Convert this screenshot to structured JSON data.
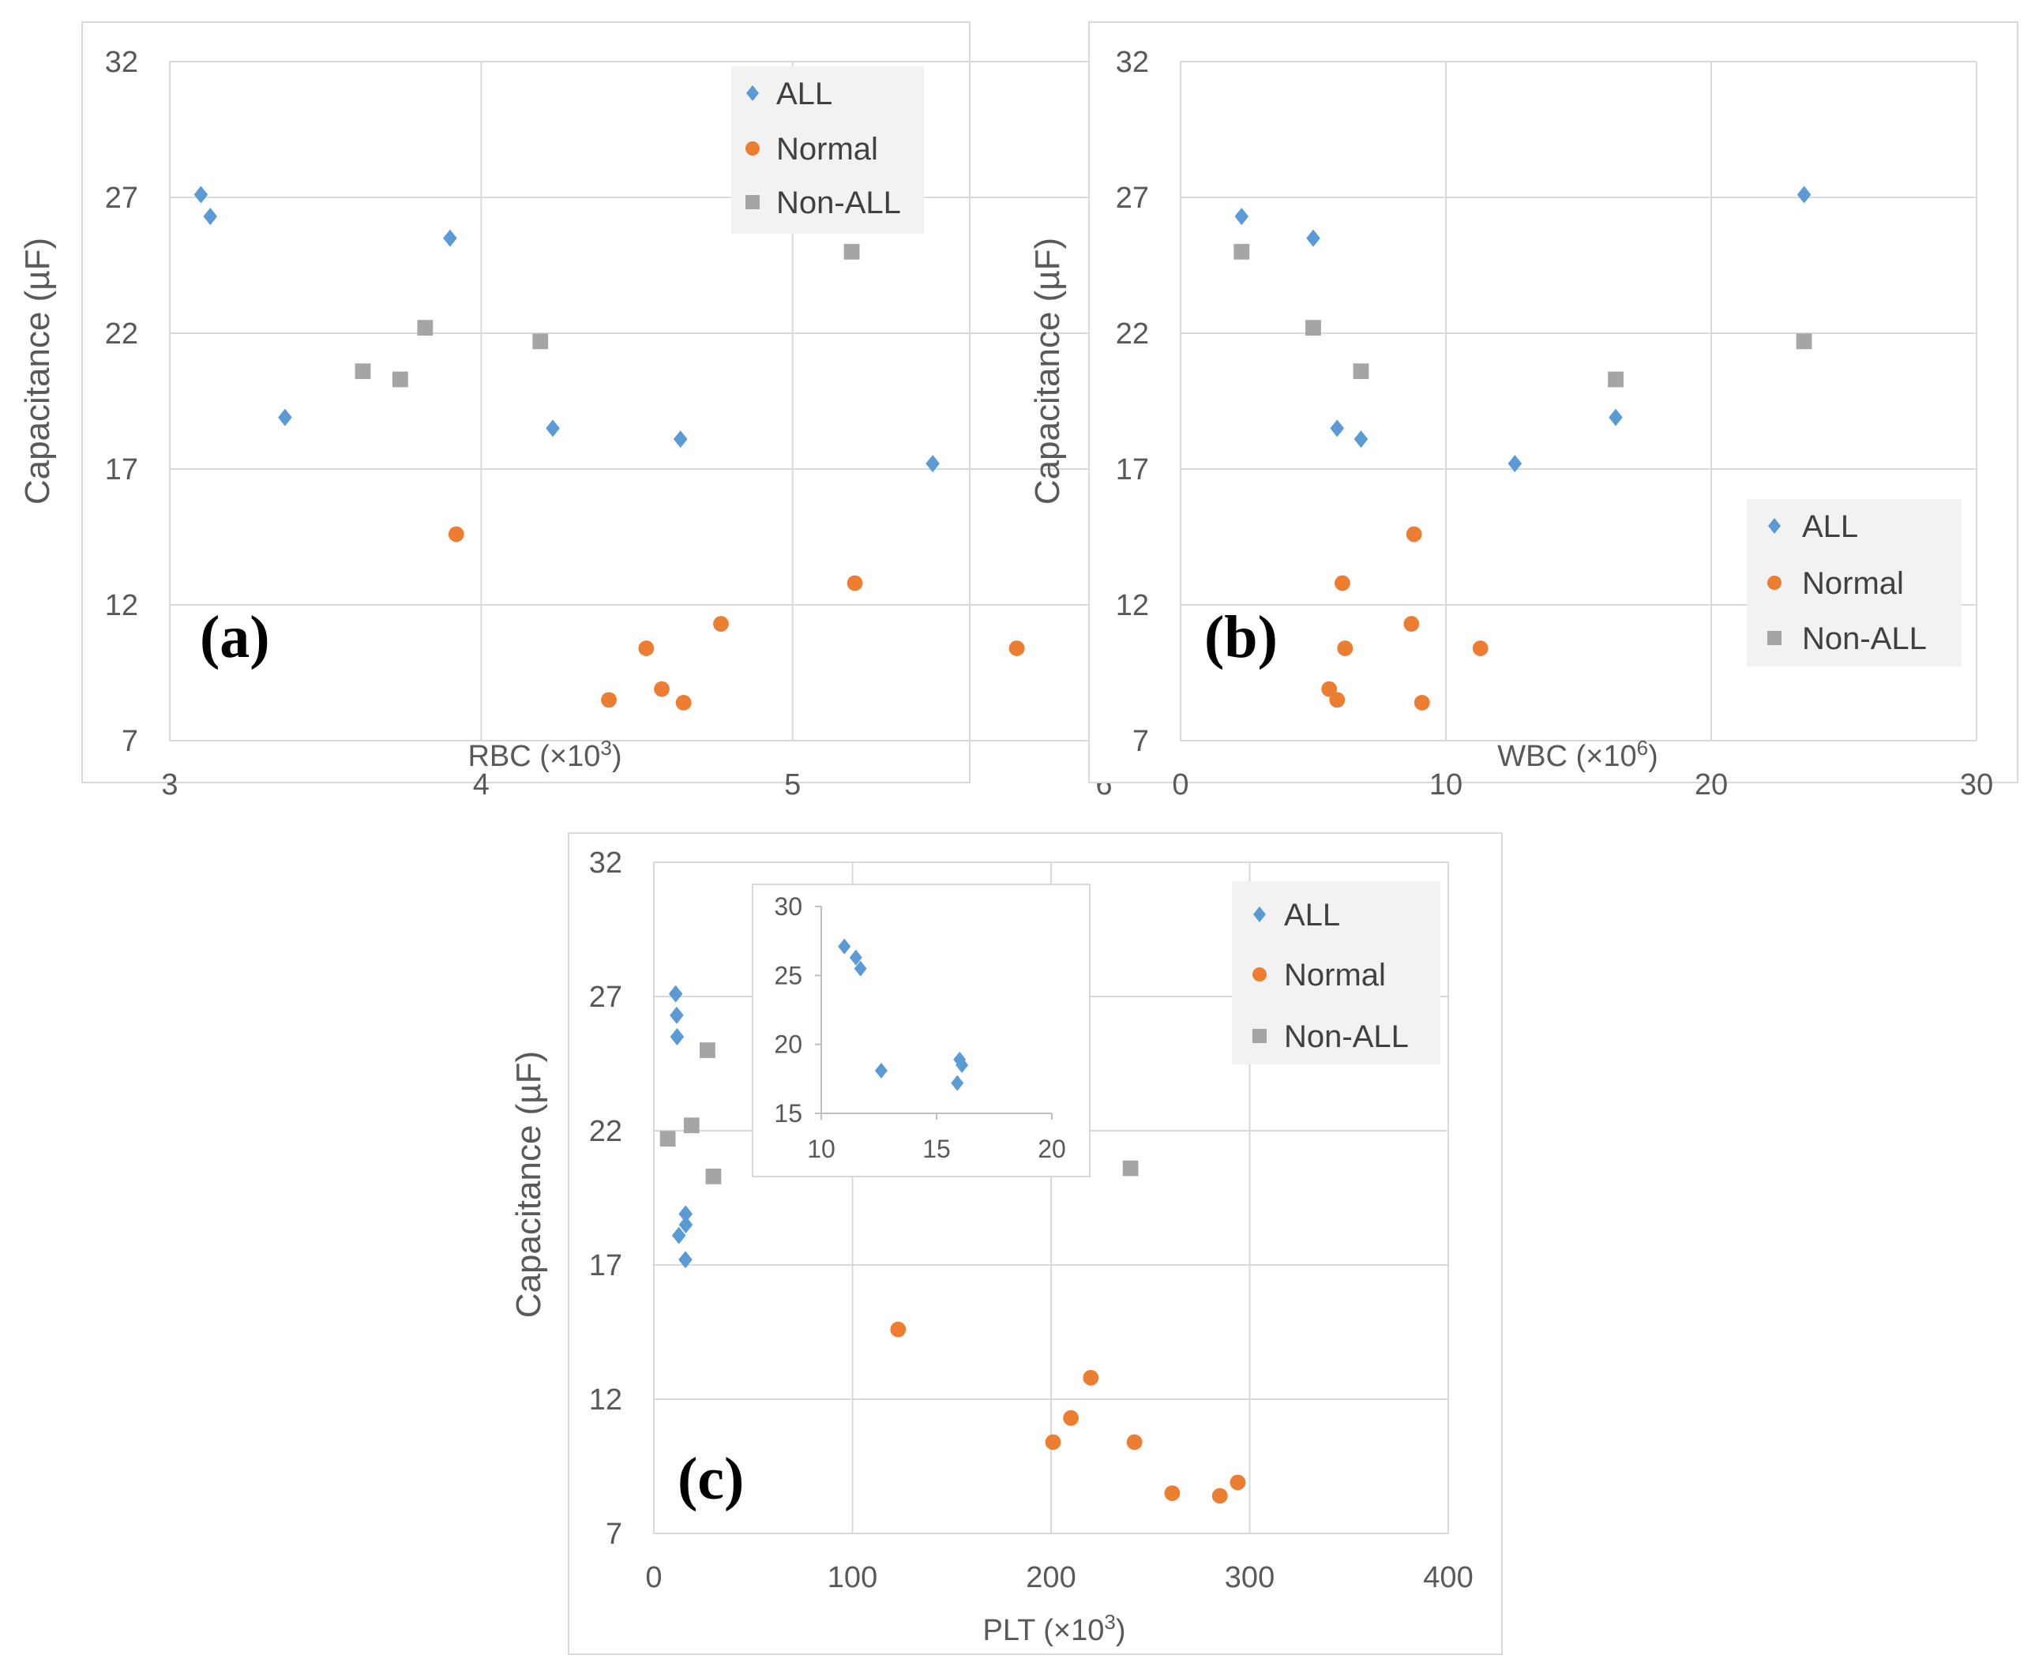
{
  "colors": {
    "all": "#5b9bd5",
    "normal": "#ed7d31",
    "non_all": "#a5a5a5",
    "grid": "#d9d9d9",
    "legend_bg": "#f2f2f2"
  },
  "legend": {
    "all": "ALL",
    "normal": "Normal",
    "non_all": "Non-ALL"
  },
  "chart_data": [
    {
      "type": "scatter",
      "tag": "(a)",
      "xlabel": "RBC (×10",
      "xlabel_sup": "3",
      "xlabel_tail": ")",
      "ylabel": "Capacitance (µF)",
      "xlim": [
        3,
        6
      ],
      "ylim": [
        7,
        32
      ],
      "xticks": [
        "3",
        "4",
        "5",
        "6"
      ],
      "yticks": [
        "7",
        "12",
        "17",
        "22",
        "27",
        "32"
      ],
      "legend_position": "top-right",
      "series": [
        {
          "name": "ALL",
          "key": "all",
          "marker": "diamond",
          "points": [
            [
              3.1,
              27.1
            ],
            [
              3.13,
              26.3
            ],
            [
              3.37,
              18.9
            ],
            [
              3.9,
              25.5
            ],
            [
              4.23,
              18.5
            ],
            [
              4.64,
              18.1
            ],
            [
              5.45,
              17.2
            ]
          ]
        },
        {
          "name": "Normal",
          "key": "normal",
          "marker": "circle",
          "points": [
            [
              3.92,
              14.6
            ],
            [
              4.41,
              8.5
            ],
            [
              4.53,
              10.4
            ],
            [
              4.58,
              8.9
            ],
            [
              4.65,
              8.4
            ],
            [
              4.77,
              11.3
            ],
            [
              5.2,
              12.8
            ],
            [
              5.72,
              10.4
            ]
          ]
        },
        {
          "name": "Non-ALL",
          "key": "non_all",
          "marker": "square",
          "points": [
            [
              3.62,
              20.6
            ],
            [
              3.74,
              20.3
            ],
            [
              3.82,
              22.2
            ],
            [
              4.19,
              21.7
            ],
            [
              5.19,
              25.0
            ]
          ]
        }
      ]
    },
    {
      "type": "scatter",
      "tag": "(b)",
      "xlabel": "WBC (×10",
      "xlabel_sup": "6",
      "xlabel_tail": ")",
      "ylabel": "Capacitance (µF)",
      "xlim": [
        0,
        30
      ],
      "ylim": [
        7,
        32
      ],
      "xticks": [
        "0",
        "10",
        "20",
        "30"
      ],
      "yticks": [
        "7",
        "12",
        "17",
        "22",
        "27",
        "32"
      ],
      "legend_position": "bottom-right",
      "series": [
        {
          "name": "ALL",
          "key": "all",
          "marker": "diamond",
          "points": [
            [
              2.3,
              26.3
            ],
            [
              5.0,
              25.5
            ],
            [
              5.9,
              18.5
            ],
            [
              6.8,
              18.1
            ],
            [
              12.6,
              17.2
            ],
            [
              16.4,
              18.9
            ],
            [
              23.5,
              27.1
            ]
          ]
        },
        {
          "name": "Normal",
          "key": "normal",
          "marker": "circle",
          "points": [
            [
              5.6,
              8.9
            ],
            [
              5.9,
              8.5
            ],
            [
              6.1,
              12.8
            ],
            [
              6.2,
              10.4
            ],
            [
              8.7,
              11.3
            ],
            [
              8.8,
              14.6
            ],
            [
              9.1,
              8.4
            ],
            [
              11.3,
              10.4
            ]
          ]
        },
        {
          "name": "Non-ALL",
          "key": "non_all",
          "marker": "square",
          "points": [
            [
              2.3,
              25.0
            ],
            [
              5.0,
              22.2
            ],
            [
              6.8,
              20.6
            ],
            [
              16.4,
              20.3
            ],
            [
              23.5,
              21.7
            ]
          ]
        }
      ]
    },
    {
      "type": "scatter",
      "tag": "(c)",
      "xlabel": "PLT (×10",
      "xlabel_sup": "3",
      "xlabel_tail": ")",
      "ylabel": "Capacitance (µF)",
      "xlim": [
        0,
        400
      ],
      "ylim": [
        7,
        32
      ],
      "xticks": [
        "0",
        "100",
        "200",
        "300",
        "400"
      ],
      "yticks": [
        "7",
        "12",
        "17",
        "22",
        "27",
        "32"
      ],
      "legend_position": "top-right",
      "series": [
        {
          "name": "ALL",
          "key": "all",
          "marker": "diamond",
          "points": [
            [
              11,
              27.1
            ],
            [
              11.5,
              26.3
            ],
            [
              11.7,
              25.5
            ],
            [
              12.6,
              18.1
            ],
            [
              15.9,
              17.2
            ],
            [
              16,
              18.9
            ],
            [
              16.1,
              18.5
            ]
          ]
        },
        {
          "name": "Normal",
          "key": "normal",
          "marker": "circle",
          "points": [
            [
              123,
              14.6
            ],
            [
              201,
              10.4
            ],
            [
              210,
              11.3
            ],
            [
              220,
              12.8
            ],
            [
              242,
              10.4
            ],
            [
              261,
              8.5
            ],
            [
              285,
              8.4
            ],
            [
              294,
              8.9
            ]
          ]
        },
        {
          "name": "Non-ALL",
          "key": "non_all",
          "marker": "square",
          "points": [
            [
              7,
              21.7
            ],
            [
              19,
              22.2
            ],
            [
              27,
              25.0
            ],
            [
              30,
              20.3
            ],
            [
              240,
              20.6
            ]
          ]
        }
      ],
      "inset": {
        "type": "scatter",
        "xlim": [
          10,
          20
        ],
        "ylim": [
          15,
          30
        ],
        "xticks": [
          "10",
          "15",
          "20"
        ],
        "yticks": [
          "15",
          "20",
          "25",
          "30"
        ],
        "points": [
          [
            11,
            27.1
          ],
          [
            11.5,
            26.3
          ],
          [
            11.7,
            25.5
          ],
          [
            12.6,
            18.1
          ],
          [
            15.9,
            17.2
          ],
          [
            16,
            18.9
          ],
          [
            16.1,
            18.5
          ]
        ]
      }
    }
  ]
}
